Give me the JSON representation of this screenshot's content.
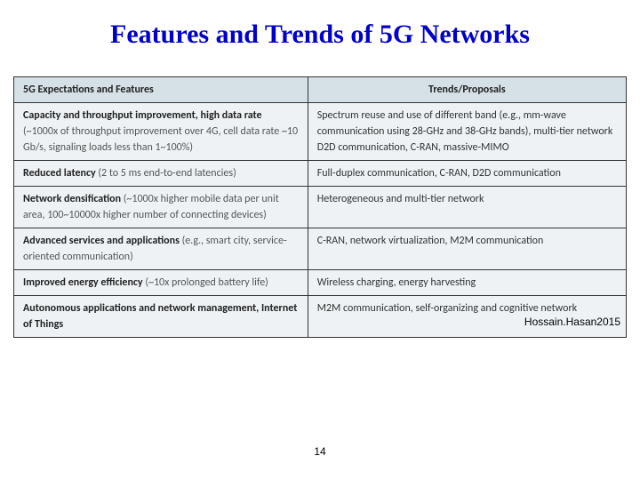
{
  "title": "Features and Trends of 5G Networks",
  "headers": {
    "left": "5G Expectations and Features",
    "right": "Trends/Proposals"
  },
  "rows": [
    {
      "feature_main": "Capacity and throughput improvement, high data rate",
      "feature_detail": "(~1000x of throughput improvement over 4G, cell data rate ~10 Gb/s, signaling loads less than 1~100%)",
      "trend": "Spectrum reuse and use of different band (e.g., mm-wave communication using 28-GHz and 38-GHz bands), multi-tier network\nD2D communication, C-RAN, massive-MIMO"
    },
    {
      "feature_main": "Reduced latency",
      "feature_detail": " (2 to 5 ms end-to-end latencies)",
      "trend": "Full-duplex communication, C-RAN, D2D communication"
    },
    {
      "feature_main": "Network densification",
      "feature_detail": " (~1000x higher mobile data per unit area, 100~10000x higher number of connecting devices)",
      "trend": "Heterogeneous and multi-tier network"
    },
    {
      "feature_main": "Advanced services and applications",
      "feature_detail": " (e.g., smart city, service-oriented communication)",
      "trend": "C-RAN, network virtualization, M2M communication"
    },
    {
      "feature_main": "Improved energy efficiency",
      "feature_detail": " (~10x prolonged battery life)",
      "trend": "Wireless charging, energy harvesting"
    },
    {
      "feature_main": "Autonomous applications and network management, Internet of Things",
      "feature_detail": "",
      "trend": "M2M communication, self-organizing and cognitive network"
    }
  ],
  "citation": "Hossain.Hasan2015",
  "page_number": "14",
  "colors": {
    "title": "#0000cc",
    "header_bg": "#d5e0e7",
    "cell_bg": "#eef2f5",
    "border": "#333333",
    "background": "#ffffff"
  }
}
